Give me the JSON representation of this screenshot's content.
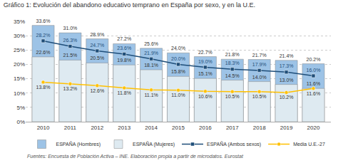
{
  "chart_data": {
    "type": "bar",
    "title": "Gráfico 1: Evolución del abandono educativo temprano en España por sexo, y en la U.E.",
    "categories": [
      "2010",
      "2011",
      "2012",
      "2013",
      "2014",
      "2015",
      "2016",
      "2017",
      "2018",
      "2019",
      "2020"
    ],
    "series": [
      {
        "name": "ESPAÑA (Hombres)",
        "type": "bar",
        "color": "#9dc3e6",
        "values": [
          33.6,
          31.0,
          28.9,
          27.2,
          25.6,
          24.0,
          22.7,
          21.8,
          21.7,
          21.4,
          20.2
        ],
        "value_labels": [
          "33.6%",
          "31.0%",
          "28.9%",
          "27.2%",
          "25.6%",
          "24.0%",
          "22.7%",
          "21.8%",
          "21.7%",
          "21.4%",
          "20.2%"
        ]
      },
      {
        "name": "ESPAÑA (Mujeres)",
        "type": "bar",
        "color": "#deeaf1",
        "values": [
          22.6,
          21.5,
          20.5,
          19.8,
          18.1,
          15.8,
          15.1,
          14.5,
          14.0,
          13.0,
          11.6
        ],
        "value_labels": [
          "22.6%",
          "21.5%",
          "20.5%",
          "19.8%",
          "18.1%",
          "15.8%",
          "15.1%",
          "14.5%",
          "14.0%",
          "13.0%",
          "11.6%"
        ]
      },
      {
        "name": "ESPAÑA (Ambos sexos)",
        "type": "line",
        "marker": "square",
        "color": "#1f4e79",
        "values": [
          28.2,
          26.3,
          24.7,
          23.6,
          21.9,
          20.0,
          19.0,
          18.3,
          17.9,
          17.3,
          16.0
        ],
        "value_labels": [
          "28.2%",
          "26.3%",
          "24.7%",
          "23.6%",
          "21.9%",
          "20.0%",
          "19.0%",
          "18.3%",
          "17.9%",
          "17.3%",
          "16.0%"
        ]
      },
      {
        "name": "Media U.E.-27",
        "type": "line",
        "marker": "circle",
        "color": "#ffc000",
        "values": [
          13.8,
          13.2,
          12.6,
          11.8,
          11.1,
          11.0,
          10.6,
          10.5,
          10.5,
          10.2,
          11.6
        ],
        "value_labels": [
          "13.8%",
          "13.2%",
          "12.6%",
          "11.8%",
          "11.1%",
          "11.0%",
          "10.6%",
          "10.5%",
          "10.5%",
          "10.2%",
          "11.6%"
        ]
      }
    ],
    "ylim": [
      0,
      35
    ],
    "yticks": [
      {
        "value": 0,
        "label": "0%"
      },
      {
        "value": 5,
        "label": "5%"
      },
      {
        "value": 10,
        "label": "10%"
      },
      {
        "value": 15,
        "label": "15%"
      },
      {
        "value": 20,
        "label": "20%"
      },
      {
        "value": 25,
        "label": "25%"
      },
      {
        "value": 30,
        "label": "30%"
      },
      {
        "value": 35,
        "label": "35%"
      }
    ],
    "grid": true,
    "legend": "bottom",
    "data_labels": true,
    "annotations": [
      "Fuentes: Encuesta de Población Activa – INE. Elaboración propia a partir de microdatos. Eurostat"
    ]
  }
}
